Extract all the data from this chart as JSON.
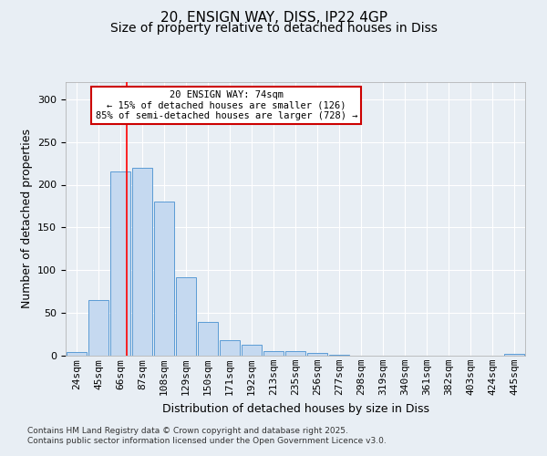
{
  "title_line1": "20, ENSIGN WAY, DISS, IP22 4GP",
  "title_line2": "Size of property relative to detached houses in Diss",
  "xlabel": "Distribution of detached houses by size in Diss",
  "ylabel": "Number of detached properties",
  "categories": [
    "24sqm",
    "45sqm",
    "66sqm",
    "87sqm",
    "108sqm",
    "129sqm",
    "150sqm",
    "171sqm",
    "192sqm",
    "213sqm",
    "235sqm",
    "256sqm",
    "277sqm",
    "298sqm",
    "319sqm",
    "340sqm",
    "361sqm",
    "382sqm",
    "403sqm",
    "424sqm",
    "445sqm"
  ],
  "values": [
    4,
    65,
    215,
    220,
    180,
    92,
    40,
    18,
    13,
    5,
    5,
    3,
    1,
    0,
    0,
    0,
    0,
    0,
    0,
    0,
    2
  ],
  "bar_color": "#c5d9f0",
  "bar_edge_color": "#5b9bd5",
  "red_line_x": 2.3,
  "annotation_title": "20 ENSIGN WAY: 74sqm",
  "annotation_line2": "← 15% of detached houses are smaller (126)",
  "annotation_line3": "85% of semi-detached houses are larger (728) →",
  "annotation_box_color": "#ffffff",
  "annotation_box_edge": "#cc0000",
  "ylim": [
    0,
    320
  ],
  "yticks": [
    0,
    50,
    100,
    150,
    200,
    250,
    300
  ],
  "footer1": "Contains HM Land Registry data © Crown copyright and database right 2025.",
  "footer2": "Contains public sector information licensed under the Open Government Licence v3.0.",
  "bg_color": "#e8eef4",
  "title_fontsize": 11,
  "subtitle_fontsize": 10,
  "axis_fontsize": 9,
  "tick_fontsize": 8
}
